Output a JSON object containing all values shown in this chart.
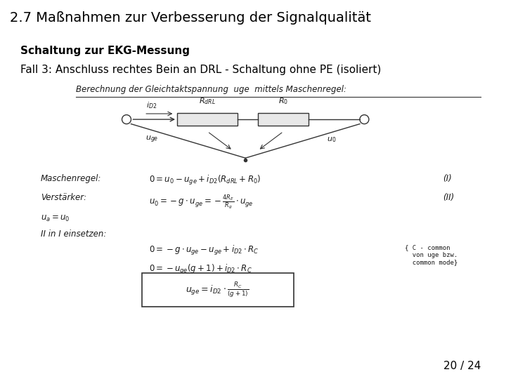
{
  "title": "2.7 Maßnahmen zur Verbesserung der Signalqualität",
  "subtitle_bold": "Schaltung zur EKG-Messung",
  "subtitle_normal": "Fall 3: Anschluss rechtes Bein an DRL - Schaltung ohne PE (isoliert)",
  "page_number": "20 / 24",
  "background_color": "#ffffff",
  "title_fontsize": 14,
  "subtitle_fontsize": 11,
  "page_fontsize": 11,
  "title_color": "#000000"
}
